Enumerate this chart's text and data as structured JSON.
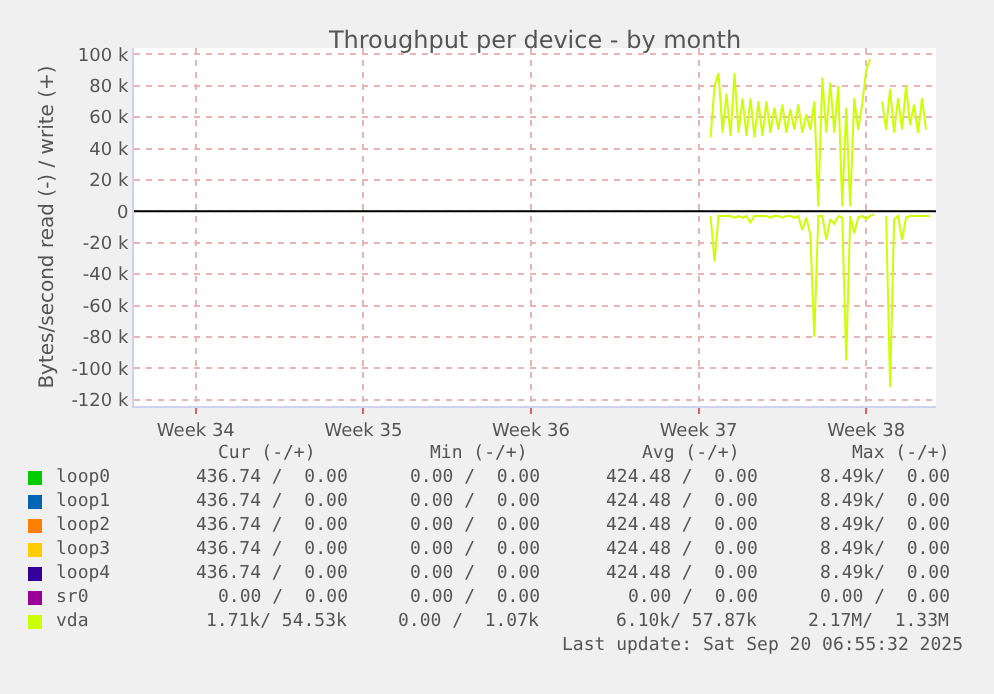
{
  "chart_data": {
    "type": "line",
    "title": "Throughput per device - by month",
    "ylabel": "Bytes/second read (-) / write (+)",
    "categories": [
      null,
      null,
      null,
      null,
      null,
      null,
      null,
      null,
      null,
      null,
      null,
      null,
      null,
      null,
      null,
      "Week 34",
      null,
      null,
      null,
      null,
      null,
      null,
      null,
      null,
      null,
      null,
      null,
      null,
      null,
      null,
      null,
      null,
      null,
      null,
      null,
      null,
      null,
      null,
      null,
      null,
      null,
      null,
      null,
      null,
      null,
      null,
      null,
      null,
      null,
      null,
      null,
      null,
      null,
      null,
      null,
      null,
      null,
      "Week 35",
      null,
      null,
      null,
      null,
      null,
      null,
      null,
      null,
      null,
      null,
      null,
      null,
      null,
      null,
      null,
      null,
      null,
      null,
      null,
      null,
      null,
      null,
      null,
      null,
      null,
      null,
      null,
      null,
      null,
      null,
      null,
      null,
      null,
      null,
      null,
      null,
      null,
      null,
      null,
      null,
      null,
      "Week 36",
      null,
      null,
      null,
      null,
      null,
      null,
      null,
      null,
      null,
      null,
      null,
      null,
      null,
      null,
      null,
      null,
      null,
      null,
      null,
      null,
      null,
      null,
      null,
      null,
      null,
      null,
      null,
      null,
      null,
      null,
      null,
      null,
      null,
      null,
      null,
      null,
      null,
      null,
      null,
      null,
      null,
      "Week 37",
      null,
      null,
      null,
      null,
      null,
      null,
      null,
      null,
      null,
      null,
      null,
      null,
      null,
      null,
      null,
      null,
      null,
      null,
      null,
      null,
      null,
      null,
      null,
      null,
      null,
      null,
      null,
      null,
      null,
      null,
      null,
      null,
      null,
      null,
      null,
      null,
      null,
      null,
      null,
      null,
      null,
      "Week 38",
      null,
      null,
      null,
      null,
      null,
      null,
      null,
      null,
      null,
      null,
      null,
      null,
      null,
      null,
      null,
      null,
      null
    ],
    "ylim": [
      -124000,
      104000
    ],
    "yticks": [
      {
        "value": -120000,
        "label": "-120 k"
      },
      {
        "value": -100000,
        "label": "-100 k"
      },
      {
        "value": -80000,
        "label": "-80 k"
      },
      {
        "value": -60000,
        "label": "-60 k"
      },
      {
        "value": -40000,
        "label": "-40 k"
      },
      {
        "value": -20000,
        "label": "-20 k"
      },
      0,
      {
        "value": 20000,
        "label": "20 k"
      },
      {
        "value": 40000,
        "label": "40 k"
      },
      {
        "value": 60000,
        "label": "60 k"
      },
      {
        "value": 80000,
        "label": "80 k"
      },
      {
        "value": 100000,
        "label": "100 k"
      }
    ],
    "grid": true,
    "marker": "none",
    "line_style": "solid",
    "ref_lines": [
      {
        "axis": "y",
        "value": 0,
        "color": "#000000"
      }
    ],
    "series": [
      {
        "name": "loop0",
        "color": "#00cc00",
        "values": [
          null,
          null,
          null,
          null,
          null,
          null,
          null,
          null,
          null,
          null,
          null,
          null,
          null,
          null,
          null,
          null,
          null,
          null,
          null,
          null,
          null,
          null,
          null,
          null,
          null,
          null,
          null,
          null,
          null,
          null,
          null,
          null,
          null,
          null,
          null,
          null,
          null,
          null,
          null,
          null,
          null,
          null,
          null,
          null,
          null,
          null,
          null,
          null,
          null,
          null,
          null,
          null,
          null,
          null,
          null,
          null,
          null,
          null,
          null,
          null,
          null,
          null,
          null,
          null,
          null,
          null,
          null,
          null,
          null,
          null,
          null,
          null,
          null,
          null,
          null,
          null,
          null,
          null,
          null,
          null,
          null,
          null,
          null,
          null,
          null,
          null,
          null,
          null,
          null,
          null,
          null,
          null,
          null,
          null,
          null,
          null,
          null,
          null,
          null,
          null,
          null,
          null,
          null,
          null,
          null,
          null,
          null,
          null,
          null,
          null,
          null,
          null,
          null,
          null,
          null,
          null,
          null,
          null,
          null,
          null,
          null,
          null,
          null,
          null,
          null,
          null,
          null,
          null,
          null,
          null,
          null,
          null,
          null,
          null,
          null,
          null,
          null,
          null,
          null,
          null,
          null,
          null,
          null,
          null,
          null,
          null,
          null,
          null,
          null,
          null,
          null,
          null,
          null,
          null,
          null,
          null,
          null,
          null,
          null,
          null,
          null,
          null,
          null,
          null,
          null,
          null,
          null,
          null,
          null,
          null,
          null,
          null,
          null,
          null,
          null,
          null,
          null,
          null,
          null,
          null,
          null,
          null,
          null,
          null,
          null,
          null,
          null,
          null,
          null,
          null,
          null,
          null,
          null,
          null,
          null,
          null,
          null,
          null,
          null,
          null,
          null
        ]
      },
      {
        "name": "loop1",
        "color": "#0066b3",
        "values": [
          null,
          null,
          null,
          null,
          null,
          null,
          null,
          null,
          null,
          null,
          null,
          null,
          null,
          null,
          null,
          null,
          null,
          null,
          null,
          null,
          null,
          null,
          null,
          null,
          null,
          null,
          null,
          null,
          null,
          null,
          null,
          null,
          null,
          null,
          null,
          null,
          null,
          null,
          null,
          null,
          null,
          null,
          null,
          null,
          null,
          null,
          null,
          null,
          null,
          null,
          null,
          null,
          null,
          null,
          null,
          null,
          null,
          null,
          null,
          null,
          null,
          null,
          null,
          null,
          null,
          null,
          null,
          null,
          null,
          null,
          null,
          null,
          null,
          null,
          null,
          null,
          null,
          null,
          null,
          null,
          null,
          null,
          null,
          null,
          null,
          null,
          null,
          null,
          null,
          null,
          null,
          null,
          null,
          null,
          null,
          null,
          null,
          null,
          null,
          null,
          null,
          null,
          null,
          null,
          null,
          null,
          null,
          null,
          null,
          null,
          null,
          null,
          null,
          null,
          null,
          null,
          null,
          null,
          null,
          null,
          null,
          null,
          null,
          null,
          null,
          null,
          null,
          null,
          null,
          null,
          null,
          null,
          null,
          null,
          null,
          null,
          null,
          null,
          null,
          null,
          null,
          null,
          null,
          null,
          null,
          null,
          null,
          null,
          null,
          null,
          null,
          null,
          null,
          null,
          null,
          null,
          null,
          null,
          null,
          null,
          null,
          null,
          null,
          null,
          null,
          null,
          null,
          null,
          null,
          null,
          null,
          null,
          null,
          null,
          null,
          null,
          null,
          null,
          null,
          null,
          null,
          null,
          null,
          null,
          null,
          null,
          null,
          null,
          null,
          null,
          null,
          null,
          null,
          null,
          null,
          null,
          null,
          null,
          null,
          null,
          null
        ]
      },
      {
        "name": "loop2",
        "color": "#ff8000",
        "values": [
          null,
          null,
          null,
          null,
          null,
          null,
          null,
          null,
          null,
          null,
          null,
          null,
          null,
          null,
          null,
          null,
          null,
          null,
          null,
          null,
          null,
          null,
          null,
          null,
          null,
          null,
          null,
          null,
          null,
          null,
          null,
          null,
          null,
          null,
          null,
          null,
          null,
          null,
          null,
          null,
          null,
          null,
          null,
          null,
          null,
          null,
          null,
          null,
          null,
          null,
          null,
          null,
          null,
          null,
          null,
          null,
          null,
          null,
          null,
          null,
          null,
          null,
          null,
          null,
          null,
          null,
          null,
          null,
          null,
          null,
          null,
          null,
          null,
          null,
          null,
          null,
          null,
          null,
          null,
          null,
          null,
          null,
          null,
          null,
          null,
          null,
          null,
          null,
          null,
          null,
          null,
          null,
          null,
          null,
          null,
          null,
          null,
          null,
          null,
          null,
          null,
          null,
          null,
          null,
          null,
          null,
          null,
          null,
          null,
          null,
          null,
          null,
          null,
          null,
          null,
          null,
          null,
          null,
          null,
          null,
          null,
          null,
          null,
          null,
          null,
          null,
          null,
          null,
          null,
          null,
          null,
          null,
          null,
          null,
          null,
          null,
          null,
          null,
          null,
          null,
          null,
          null,
          null,
          null,
          null,
          null,
          null,
          null,
          null,
          null,
          null,
          null,
          null,
          null,
          null,
          null,
          null,
          null,
          null,
          null,
          null,
          null,
          null,
          null,
          null,
          null,
          null,
          null,
          null,
          null,
          null,
          null,
          null,
          null,
          null,
          null,
          null,
          null,
          null,
          null,
          null,
          null,
          null,
          null,
          null,
          null,
          null,
          null,
          null,
          null,
          null,
          null,
          null,
          null,
          null,
          null,
          null,
          null,
          null,
          null,
          null
        ]
      },
      {
        "name": "loop3",
        "color": "#ffcc00",
        "values": [
          null,
          null,
          null,
          null,
          null,
          null,
          null,
          null,
          null,
          null,
          null,
          null,
          null,
          null,
          null,
          null,
          null,
          null,
          null,
          null,
          null,
          null,
          null,
          null,
          null,
          null,
          null,
          null,
          null,
          null,
          null,
          null,
          null,
          null,
          null,
          null,
          null,
          null,
          null,
          null,
          null,
          null,
          null,
          null,
          null,
          null,
          null,
          null,
          null,
          null,
          null,
          null,
          null,
          null,
          null,
          null,
          null,
          null,
          null,
          null,
          null,
          null,
          null,
          null,
          null,
          null,
          null,
          null,
          null,
          null,
          null,
          null,
          null,
          null,
          null,
          null,
          null,
          null,
          null,
          null,
          null,
          null,
          null,
          null,
          null,
          null,
          null,
          null,
          null,
          null,
          null,
          null,
          null,
          null,
          null,
          null,
          null,
          null,
          null,
          null,
          null,
          null,
          null,
          null,
          null,
          null,
          null,
          null,
          null,
          null,
          null,
          null,
          null,
          null,
          null,
          null,
          null,
          null,
          null,
          null,
          null,
          null,
          null,
          null,
          null,
          null,
          null,
          null,
          null,
          null,
          null,
          null,
          null,
          null,
          null,
          null,
          null,
          null,
          null,
          null,
          null,
          null,
          null,
          null,
          null,
          null,
          null,
          null,
          null,
          null,
          null,
          null,
          null,
          null,
          null,
          null,
          null,
          null,
          null,
          null,
          null,
          null,
          null,
          null,
          null,
          null,
          null,
          null,
          null,
          null,
          null,
          null,
          null,
          null,
          null,
          null,
          null,
          null,
          null,
          null,
          null,
          null,
          null,
          null,
          null,
          null,
          null,
          null,
          null,
          null,
          null,
          null,
          null,
          null,
          null,
          null,
          null,
          null,
          null,
          null,
          null
        ]
      },
      {
        "name": "loop4",
        "color": "#330099",
        "values": [
          null,
          null,
          null,
          null,
          null,
          null,
          null,
          null,
          null,
          null,
          null,
          null,
          null,
          null,
          null,
          null,
          null,
          null,
          null,
          null,
          null,
          null,
          null,
          null,
          null,
          null,
          null,
          null,
          null,
          null,
          null,
          null,
          null,
          null,
          null,
          null,
          null,
          null,
          null,
          null,
          null,
          null,
          null,
          null,
          null,
          null,
          null,
          null,
          null,
          null,
          null,
          null,
          null,
          null,
          null,
          null,
          null,
          null,
          null,
          null,
          null,
          null,
          null,
          null,
          null,
          null,
          null,
          null,
          null,
          null,
          null,
          null,
          null,
          null,
          null,
          null,
          null,
          null,
          null,
          null,
          null,
          null,
          null,
          null,
          null,
          null,
          null,
          null,
          null,
          null,
          null,
          null,
          null,
          null,
          null,
          null,
          null,
          null,
          null,
          null,
          null,
          null,
          null,
          null,
          null,
          null,
          null,
          null,
          null,
          null,
          null,
          null,
          null,
          null,
          null,
          null,
          null,
          null,
          null,
          null,
          null,
          null,
          null,
          null,
          null,
          null,
          null,
          null,
          null,
          null,
          null,
          null,
          null,
          null,
          null,
          null,
          null,
          null,
          null,
          null,
          null,
          null,
          null,
          null,
          null,
          null,
          null,
          null,
          null,
          null,
          null,
          null,
          null,
          null,
          null,
          null,
          null,
          null,
          null,
          null,
          null,
          null,
          null,
          null,
          null,
          null,
          null,
          null,
          null,
          null,
          null,
          null,
          null,
          null,
          null,
          null,
          null,
          null,
          null,
          null,
          null,
          null,
          null,
          null,
          null,
          null,
          null,
          null,
          null,
          null,
          null,
          null,
          null,
          null,
          null,
          null,
          null,
          null,
          null,
          null,
          null
        ]
      },
      {
        "name": "sr0",
        "color": "#990099",
        "values": [
          null,
          null,
          null,
          null,
          null,
          null,
          null,
          null,
          null,
          null,
          null,
          null,
          null,
          null,
          null,
          null,
          null,
          null,
          null,
          null,
          null,
          null,
          null,
          null,
          null,
          null,
          null,
          null,
          null,
          null,
          null,
          null,
          null,
          null,
          null,
          null,
          null,
          null,
          null,
          null,
          null,
          null,
          null,
          null,
          null,
          null,
          null,
          null,
          null,
          null,
          null,
          null,
          null,
          null,
          null,
          null,
          null,
          null,
          null,
          null,
          null,
          null,
          null,
          null,
          null,
          null,
          null,
          null,
          null,
          null,
          null,
          null,
          null,
          null,
          null,
          null,
          null,
          null,
          null,
          null,
          null,
          null,
          null,
          null,
          null,
          null,
          null,
          null,
          null,
          null,
          null,
          null,
          null,
          null,
          null,
          null,
          null,
          null,
          null,
          null,
          null,
          null,
          null,
          null,
          null,
          null,
          null,
          null,
          null,
          null,
          null,
          null,
          null,
          null,
          null,
          null,
          null,
          null,
          null,
          null,
          null,
          null,
          null,
          null,
          null,
          null,
          null,
          null,
          null,
          null,
          null,
          null,
          null,
          null,
          null,
          null,
          null,
          null,
          null,
          null,
          null,
          null,
          null,
          null,
          null,
          null,
          null,
          null,
          null,
          null,
          null,
          null,
          null,
          null,
          null,
          null,
          null,
          null,
          null,
          null,
          null,
          null,
          null,
          null,
          null,
          null,
          null,
          null,
          null,
          null,
          null,
          null,
          null,
          null,
          null,
          null,
          null,
          null,
          null,
          null,
          null,
          null,
          null,
          null,
          null,
          null,
          null,
          null,
          null,
          null,
          null,
          null,
          null,
          null,
          null,
          null,
          null,
          null,
          null,
          null,
          null
        ]
      },
      {
        "name": "vda",
        "color": "#ccff00",
        "values": [
          null,
          null,
          null,
          null,
          null,
          null,
          null,
          null,
          null,
          null,
          null,
          null,
          null,
          null,
          null,
          null,
          null,
          null,
          null,
          null,
          null,
          null,
          null,
          null,
          null,
          null,
          null,
          null,
          null,
          null,
          null,
          null,
          null,
          null,
          null,
          null,
          null,
          null,
          null,
          null,
          null,
          null,
          null,
          null,
          null,
          null,
          null,
          null,
          null,
          null,
          null,
          null,
          null,
          null,
          null,
          null,
          null,
          null,
          null,
          null,
          null,
          null,
          null,
          null,
          null,
          null,
          null,
          null,
          null,
          null,
          null,
          null,
          null,
          null,
          null,
          null,
          null,
          null,
          null,
          null,
          null,
          null,
          null,
          null,
          null,
          null,
          null,
          null,
          null,
          null,
          null,
          null,
          null,
          null,
          null,
          null,
          null,
          null,
          null,
          null,
          null,
          null,
          null,
          null,
          null,
          null,
          null,
          null,
          null,
          null,
          null,
          null,
          null,
          null,
          null,
          null,
          null,
          null,
          null,
          null,
          null,
          null,
          null,
          null,
          null,
          null,
          null,
          null,
          null,
          null,
          null,
          null,
          null,
          null,
          null,
          null,
          null,
          null,
          null,
          null,
          null,
          null,
          null,
          null,
          47000,
          80000,
          88000,
          50000,
          75000,
          48000,
          88000,
          50000,
          72000,
          48000,
          72000,
          47000,
          70000,
          48000,
          70000,
          50000,
          66000,
          52000,
          68000,
          50000,
          65000,
          52000,
          68000,
          50000,
          62000,
          52000,
          70000,
          3000,
          85000,
          50000,
          82000,
          50000,
          80000,
          3000,
          66000,
          3000,
          72000,
          52000,
          68000,
          90000,
          97000,
          null,
          null,
          70000,
          52000,
          78000,
          50000,
          72000,
          52000,
          80000,
          55000,
          68000,
          50000,
          72000,
          52000,
          null,
          null
        ]
      },
      {
        "color": "#ccff00",
        "values": [
          null,
          null,
          null,
          null,
          null,
          null,
          null,
          null,
          null,
          null,
          null,
          null,
          null,
          null,
          null,
          null,
          null,
          null,
          null,
          null,
          null,
          null,
          null,
          null,
          null,
          null,
          null,
          null,
          null,
          null,
          null,
          null,
          null,
          null,
          null,
          null,
          null,
          null,
          null,
          null,
          null,
          null,
          null,
          null,
          null,
          null,
          null,
          null,
          null,
          null,
          null,
          null,
          null,
          null,
          null,
          null,
          null,
          null,
          null,
          null,
          null,
          null,
          null,
          null,
          null,
          null,
          null,
          null,
          null,
          null,
          null,
          null,
          null,
          null,
          null,
          null,
          null,
          null,
          null,
          null,
          null,
          null,
          null,
          null,
          null,
          null,
          null,
          null,
          null,
          null,
          null,
          null,
          null,
          null,
          null,
          null,
          null,
          null,
          null,
          null,
          null,
          null,
          null,
          null,
          null,
          null,
          null,
          null,
          null,
          null,
          null,
          null,
          null,
          null,
          null,
          null,
          null,
          null,
          null,
          null,
          null,
          null,
          null,
          null,
          null,
          null,
          null,
          null,
          null,
          null,
          null,
          null,
          null,
          null,
          null,
          null,
          null,
          null,
          null,
          null,
          null,
          null,
          null,
          null,
          -3000,
          -32000,
          -3000,
          -3000,
          -3000,
          -3000,
          -4000,
          -3000,
          -4000,
          -3000,
          -7000,
          -3000,
          -3000,
          -3000,
          -3000,
          -4000,
          -3000,
          -3000,
          -4000,
          -3000,
          -3000,
          -4000,
          -3000,
          -12000,
          -4000,
          -15000,
          -80000,
          -3000,
          -3000,
          -18000,
          -5000,
          -8000,
          -3000,
          -4000,
          -95000,
          -3000,
          -14000,
          -4000,
          -3000,
          -5000,
          -3000,
          -2000,
          null,
          null,
          -3000,
          -112000,
          -5000,
          -3000,
          -18000,
          -4000,
          -3000,
          -3000,
          -3000,
          -3000,
          -3000,
          -3000,
          null
        ]
      }
    ],
    "annotations": [
      "Cur (-/+)",
      "Min (-/+)",
      "Avg (-/+)",
      "Max (-/+)",
      "436.74 /  0.00",
      "0.00 /  0.00",
      "424.48 /  0.00",
      "8.49k/  0.00",
      "436.74 /  0.00",
      "0.00 /  0.00",
      "424.48 /  0.00",
      "8.49k/  0.00",
      "436.74 /  0.00",
      "0.00 /  0.00",
      "424.48 /  0.00",
      "8.49k/  0.00",
      "436.74 /  0.00",
      "0.00 /  0.00",
      "424.48 /  0.00",
      "8.49k/  0.00",
      "436.74 /  0.00",
      "0.00 /  0.00",
      "424.48 /  0.00",
      "8.49k/  0.00",
      "0.00 /  0.00",
      "0.00 /  0.00",
      "0.00 /  0.00",
      "0.00 /  0.00",
      "1.71k/ 54.53k",
      "0.00 /  1.07k",
      "6.10k/ 57.87k",
      "2.17M/  1.33M",
      "Last update: Sat Sep 20 06:55:32 2025"
    ]
  }
}
